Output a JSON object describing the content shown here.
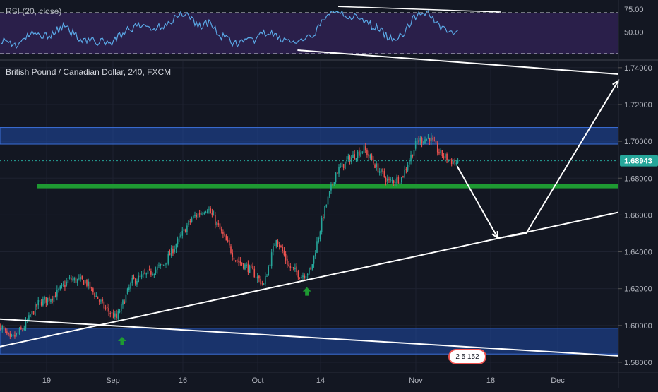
{
  "colors": {
    "background": "#131722",
    "grid": "#1e2230",
    "candle_up": "#26a69a",
    "candle_down": "#ef5350",
    "rsi_line": "#5aa8e6",
    "rsi_band": "#2a1f4a",
    "zone_blue": "#1f4aa8",
    "zone_green": "#1e9a32",
    "annotation": "#ffffff",
    "arrow_marker": "#1e9a32",
    "text": "#b2b5be"
  },
  "indicator": {
    "label": "RSI (20, close)"
  },
  "chart_title": "British Pound / Canadian Dollar, 240, FXCM",
  "price_badge": "1.68943",
  "event_badge": "2 5 152",
  "chart_data": [
    {
      "type": "candlestick",
      "title": "British Pound / Canadian Dollar, 240, FXCM",
      "x_tick_labels": [
        "19",
        "Sep",
        "16",
        "Oct",
        "14",
        "Nov",
        "18",
        "Dec"
      ],
      "y_tick_labels": [
        "1.74000",
        "1.72000",
        "1.70000",
        "1.68000",
        "1.66000",
        "1.64000",
        "1.62000",
        "1.60000",
        "1.58000"
      ],
      "ylim": [
        1.575,
        1.743
      ],
      "last_price": 1.68943,
      "series_close_keypoints": [
        {
          "x": 0,
          "y": 1.6
        },
        {
          "x": 6,
          "y": 1.592
        },
        {
          "x": 14,
          "y": 1.598
        },
        {
          "x": 24,
          "y": 1.612
        },
        {
          "x": 34,
          "y": 1.616
        },
        {
          "x": 44,
          "y": 1.625
        },
        {
          "x": 54,
          "y": 1.624
        },
        {
          "x": 66,
          "y": 1.61
        },
        {
          "x": 74,
          "y": 1.604
        },
        {
          "x": 84,
          "y": 1.624
        },
        {
          "x": 94,
          "y": 1.628
        },
        {
          "x": 104,
          "y": 1.633
        },
        {
          "x": 114,
          "y": 1.647
        },
        {
          "x": 122,
          "y": 1.658
        },
        {
          "x": 132,
          "y": 1.664
        },
        {
          "x": 140,
          "y": 1.652
        },
        {
          "x": 150,
          "y": 1.636
        },
        {
          "x": 160,
          "y": 1.63
        },
        {
          "x": 168,
          "y": 1.622
        },
        {
          "x": 176,
          "y": 1.648
        },
        {
          "x": 184,
          "y": 1.632
        },
        {
          "x": 192,
          "y": 1.627
        },
        {
          "x": 198,
          "y": 1.63
        },
        {
          "x": 206,
          "y": 1.66
        },
        {
          "x": 214,
          "y": 1.683
        },
        {
          "x": 222,
          "y": 1.69
        },
        {
          "x": 232,
          "y": 1.696
        },
        {
          "x": 240,
          "y": 1.686
        },
        {
          "x": 248,
          "y": 1.678
        },
        {
          "x": 256,
          "y": 1.68
        },
        {
          "x": 266,
          "y": 1.7
        },
        {
          "x": 274,
          "y": 1.702
        },
        {
          "x": 280,
          "y": 1.694
        },
        {
          "x": 286,
          "y": 1.69
        },
        {
          "x": 292,
          "y": 1.688
        }
      ],
      "annotations": {
        "resistance_zone": [
          1.6985,
          1.7075
        ],
        "support_zone": [
          1.5845,
          1.5985
        ],
        "green_level": [
          1.6745,
          1.677
        ],
        "ascending_trendline": [
          {
            "x": 0,
            "y": 1.5885
          },
          {
            "x": 395,
            "y": 1.6615
          }
        ],
        "descending_channel_top": [
          {
            "x": 190,
            "y": 1.7495
          },
          {
            "x": 395,
            "y": 1.7365
          }
        ],
        "descending_channel_bottom": [
          {
            "x": 0,
            "y": 1.6035
          },
          {
            "x": 395,
            "y": 1.5835
          }
        ],
        "projection_path": [
          {
            "x": 292,
            "y": 1.6865
          },
          {
            "x": 318,
            "y": 1.6475
          },
          {
            "x": 336,
            "y": 1.65
          },
          {
            "x": 395,
            "y": 1.733
          }
        ],
        "up_markers": [
          {
            "x": 78,
            "y": 1.5915
          },
          {
            "x": 196,
            "y": 1.6185
          }
        ]
      }
    },
    {
      "type": "line",
      "title": "RSI (20, close)",
      "y_tick_labels": [
        "75.00",
        "50.00"
      ],
      "ylim": [
        22,
        82
      ],
      "levels": [
        70,
        30
      ],
      "series_keypoints": [
        {
          "x": 0,
          "y": 42
        },
        {
          "x": 10,
          "y": 36
        },
        {
          "x": 20,
          "y": 48
        },
        {
          "x": 30,
          "y": 46
        },
        {
          "x": 40,
          "y": 56
        },
        {
          "x": 50,
          "y": 44
        },
        {
          "x": 60,
          "y": 40
        },
        {
          "x": 70,
          "y": 38
        },
        {
          "x": 80,
          "y": 52
        },
        {
          "x": 90,
          "y": 57
        },
        {
          "x": 100,
          "y": 54
        },
        {
          "x": 112,
          "y": 66
        },
        {
          "x": 118,
          "y": 72
        },
        {
          "x": 126,
          "y": 57
        },
        {
          "x": 134,
          "y": 60
        },
        {
          "x": 140,
          "y": 46
        },
        {
          "x": 150,
          "y": 38
        },
        {
          "x": 160,
          "y": 40
        },
        {
          "x": 170,
          "y": 50
        },
        {
          "x": 180,
          "y": 42
        },
        {
          "x": 190,
          "y": 38
        },
        {
          "x": 198,
          "y": 44
        },
        {
          "x": 206,
          "y": 62
        },
        {
          "x": 214,
          "y": 75
        },
        {
          "x": 220,
          "y": 70
        },
        {
          "x": 230,
          "y": 63
        },
        {
          "x": 240,
          "y": 55
        },
        {
          "x": 250,
          "y": 42
        },
        {
          "x": 258,
          "y": 50
        },
        {
          "x": 266,
          "y": 70
        },
        {
          "x": 272,
          "y": 72
        },
        {
          "x": 280,
          "y": 58
        },
        {
          "x": 286,
          "y": 52
        },
        {
          "x": 292,
          "y": 48
        }
      ],
      "trendline": [
        {
          "x": 216,
          "y": 78
        },
        {
          "x": 320,
          "y": 72
        }
      ]
    }
  ]
}
